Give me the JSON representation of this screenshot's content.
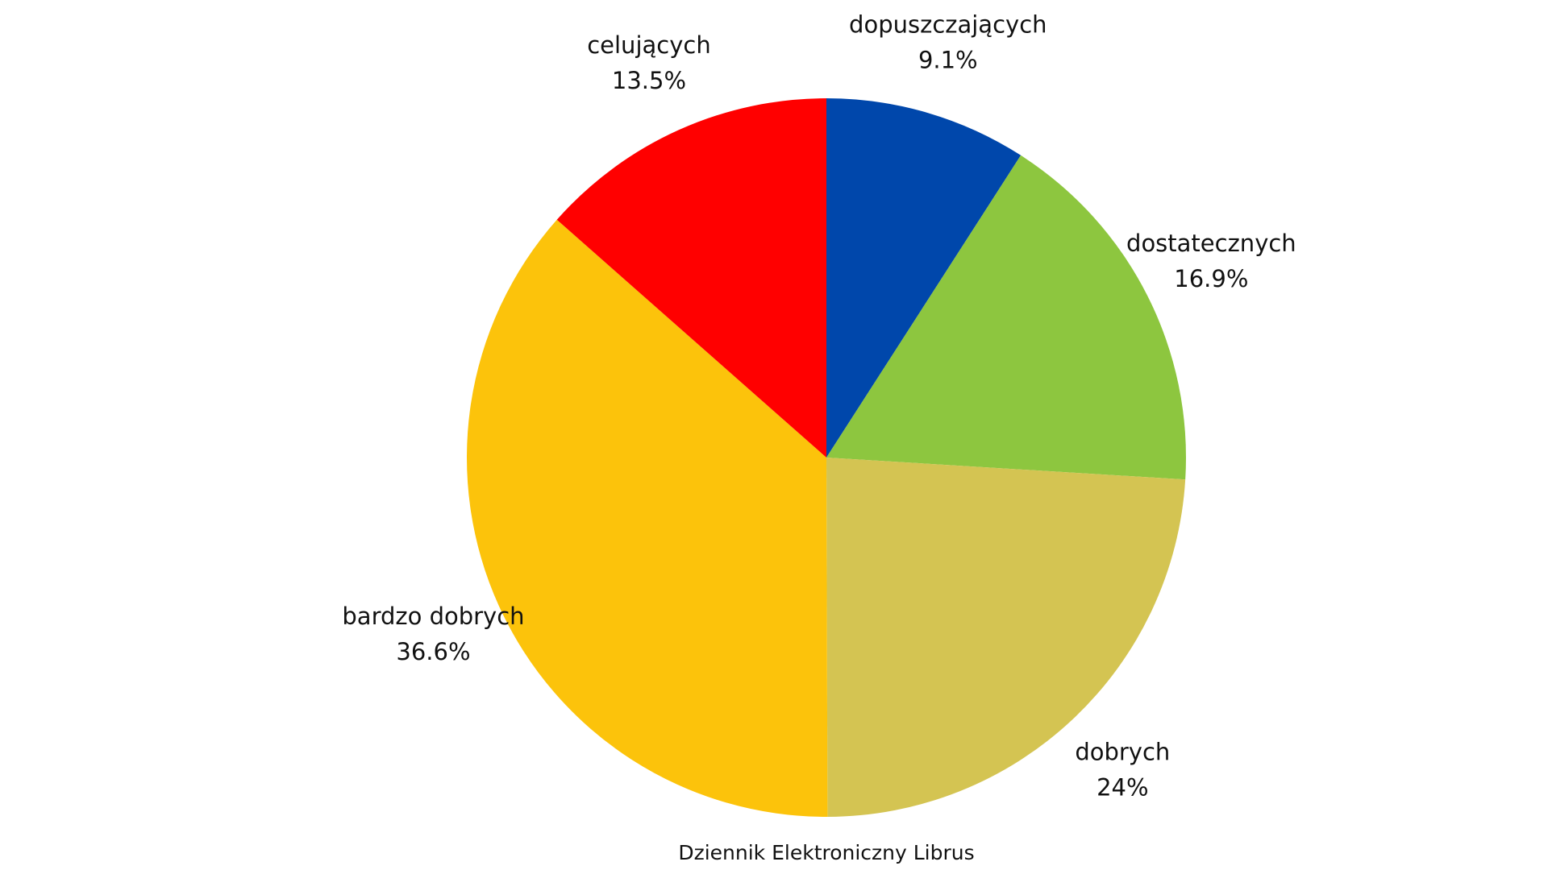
{
  "chart_data": {
    "type": "pie",
    "categories": [
      "dopuszczających",
      "dostatecznych",
      "dobrych",
      "bardzo dobrych",
      "celujących"
    ],
    "values": [
      9.1,
      16.9,
      24,
      36.6,
      13.5
    ],
    "value_labels": [
      "9.1%",
      "16.9%",
      "24%",
      "36.6%",
      "13.5%"
    ],
    "colors": [
      "#0047ab",
      "#8dc63f",
      "#d4c452",
      "#fcc30b",
      "#ff0000"
    ],
    "caption": "Dziennik Elektroniczny Librus"
  }
}
